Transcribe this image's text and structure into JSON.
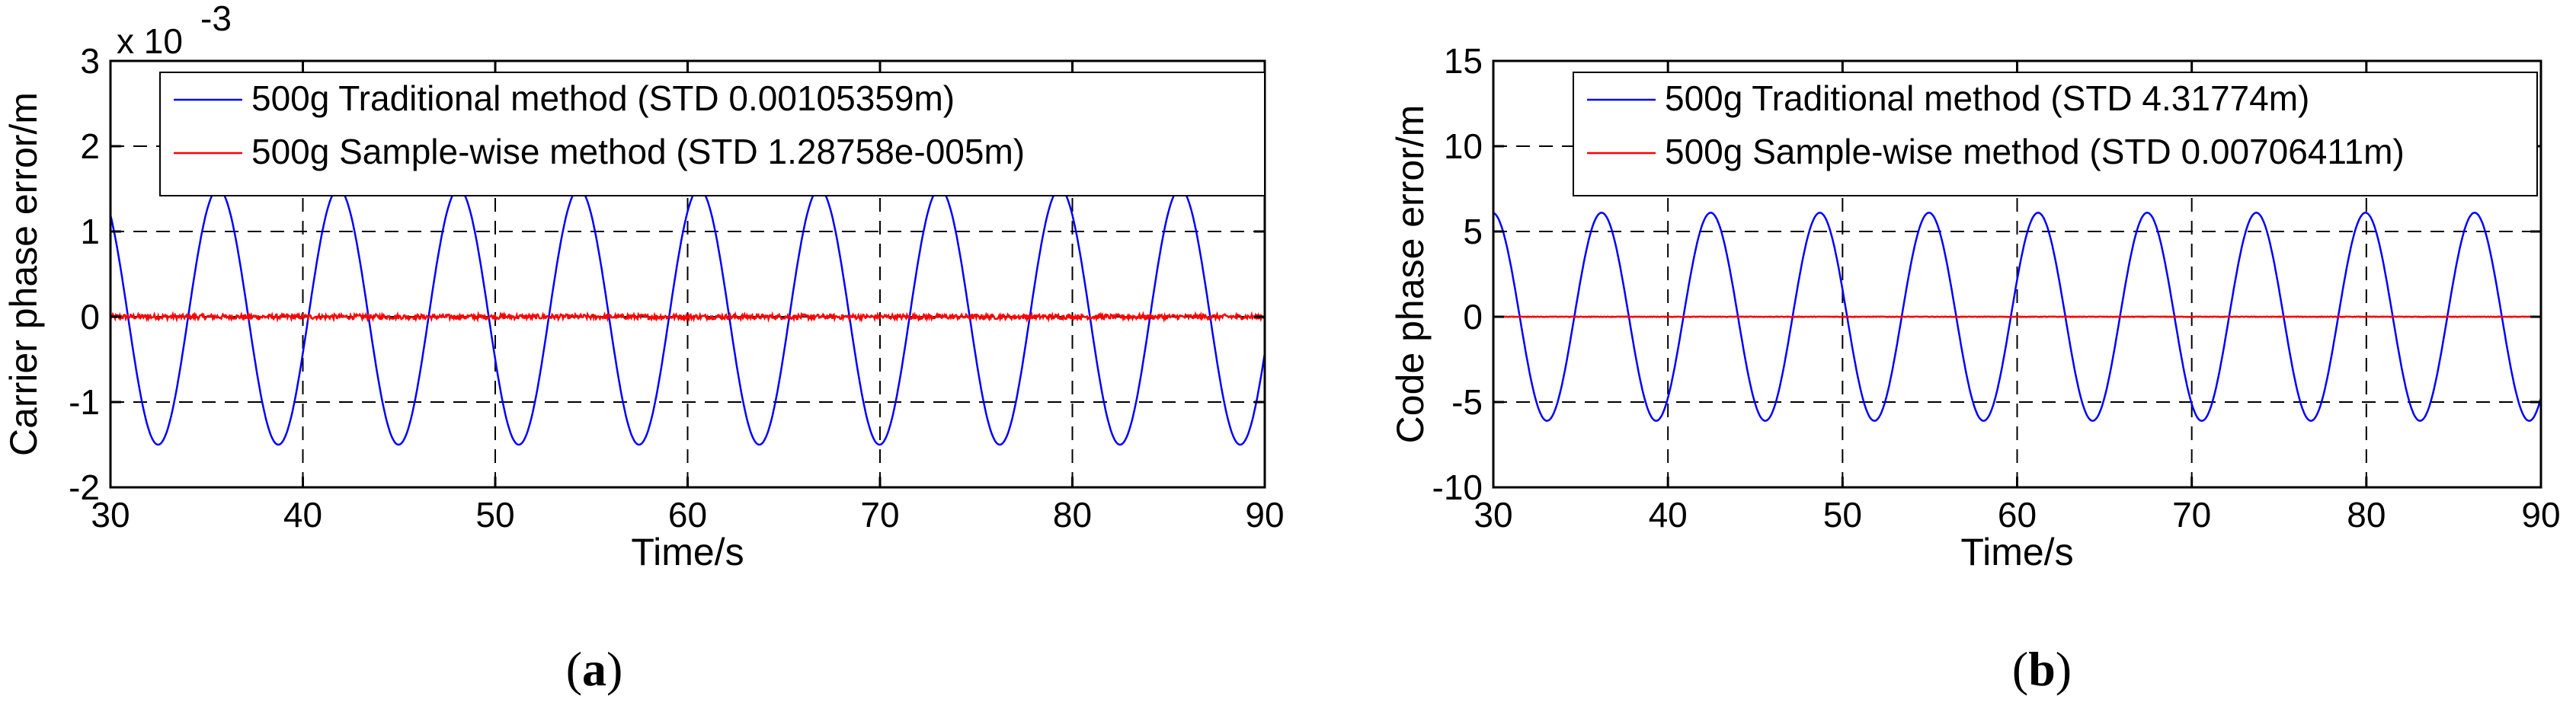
{
  "chart_data": [
    {
      "type": "line",
      "panel_label": "(a)",
      "caption_letter": "a",
      "xlabel": "Time/s",
      "ylabel": "Carrier phase error/m",
      "xlim": [
        30,
        90
      ],
      "ylim": [
        -0.002,
        0.003
      ],
      "xticks": [
        30,
        40,
        50,
        60,
        70,
        80,
        90
      ],
      "yticks": [
        -2,
        -1,
        0,
        1,
        2,
        3
      ],
      "y_multiplier": "x 10",
      "y_multiplier_exponent": "-3",
      "grid": true,
      "legend_position": "top-right",
      "series": [
        {
          "name": "500g  Traditional method (STD 0.00105359m)",
          "color": "#0000ff",
          "waveform": "sine",
          "amplitude": 0.0015,
          "period": 6.25,
          "value_at_start": 0.0012,
          "peak_times": [
            35.6,
            41.9,
            48.1,
            54.4,
            60.6,
            66.9,
            73.1,
            79.4,
            85.6
          ]
        },
        {
          "name": "500g  Sample-wise method (STD 1.28758e-005m)",
          "color": "#ff0000",
          "waveform": "noise",
          "mean": 0,
          "noise_std": 1.29e-05
        }
      ]
    },
    {
      "type": "line",
      "panel_label": "(b)",
      "caption_letter": "b",
      "xlabel": "Time/s",
      "ylabel": "Code phase error/m",
      "xlim": [
        30,
        90
      ],
      "ylim": [
        -10,
        15
      ],
      "xticks": [
        30,
        40,
        50,
        60,
        70,
        80,
        90
      ],
      "yticks": [
        -10,
        -5,
        0,
        5,
        10,
        15
      ],
      "grid": true,
      "legend_position": "top-right",
      "series": [
        {
          "name": "500g  Traditional method (STD 4.31774m)",
          "color": "#0000ff",
          "waveform": "sine",
          "amplitude": 6.1,
          "period": 6.25,
          "value_at_start": 6.0,
          "peak_times": [
            36.2,
            42.5,
            48.8,
            55.0,
            61.3,
            67.5,
            73.8,
            80.0,
            86.3
          ]
        },
        {
          "name": "500g  Sample-wise method (STD 0.00706411m)",
          "color": "#ff0000",
          "waveform": "noise",
          "mean": 0,
          "noise_std": 0.00706
        }
      ]
    }
  ]
}
